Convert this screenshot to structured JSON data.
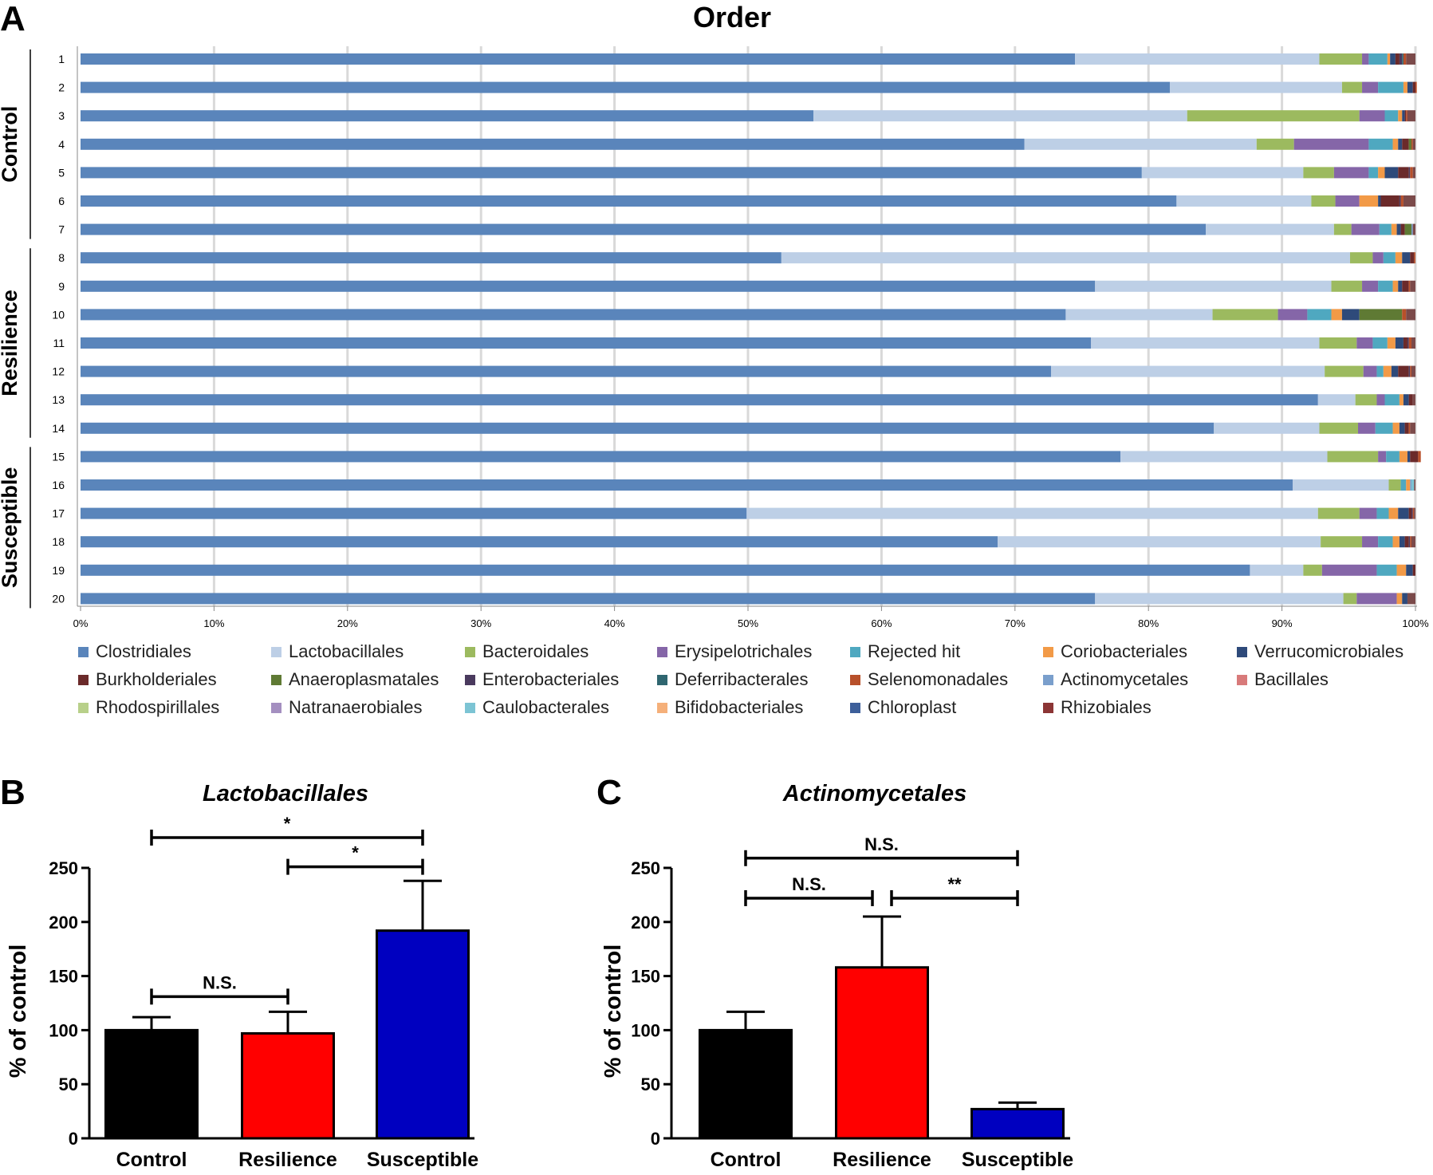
{
  "chart_data": [
    {
      "panel": "A",
      "type": "bar",
      "orientation": "horizontal",
      "stacked": true,
      "title": "Order",
      "rows": [
        "1",
        "2",
        "3",
        "4",
        "5",
        "6",
        "7",
        "8",
        "9",
        "10",
        "11",
        "12",
        "13",
        "14",
        "15",
        "16",
        "17",
        "18",
        "19",
        "20"
      ],
      "groups": [
        {
          "label": "Control",
          "rows": [
            "1",
            "2",
            "3",
            "4",
            "5",
            "6",
            "7"
          ]
        },
        {
          "label": "Resilience",
          "rows": [
            "8",
            "9",
            "10",
            "11",
            "12",
            "13",
            "14"
          ]
        },
        {
          "label": "Susceptible",
          "rows": [
            "15",
            "16",
            "17",
            "18",
            "19",
            "20"
          ]
        }
      ],
      "x_ticks": [
        "0%",
        "10%",
        "20%",
        "30%",
        "40%",
        "50%",
        "60%",
        "70%",
        "80%",
        "90%",
        "100%"
      ],
      "xlim": [
        0,
        100
      ],
      "grid": "vertical",
      "legend_position": "bottom",
      "series": [
        {
          "name": "Clostridiales",
          "color": "#5a85bb",
          "values": [
            74.5,
            81.6,
            54.9,
            70.7,
            79.5,
            82.1,
            84.3,
            52.5,
            76.0,
            73.8,
            75.7,
            72.7,
            92.7,
            84.9,
            77.9,
            90.8,
            49.9,
            68.7,
            87.6,
            76.0
          ]
        },
        {
          "name": "Lactobacillales",
          "color": "#bdcfe6",
          "values": [
            18.3,
            12.9,
            28.0,
            17.4,
            12.1,
            10.1,
            9.6,
            42.6,
            17.7,
            11.0,
            17.1,
            20.5,
            2.8,
            7.9,
            15.5,
            7.2,
            42.8,
            24.2,
            4.0,
            18.6
          ]
        },
        {
          "name": "Bacteroidales",
          "color": "#9cba5f",
          "values": [
            3.2,
            1.5,
            12.9,
            2.8,
            2.3,
            1.8,
            1.3,
            1.7,
            2.3,
            4.9,
            2.8,
            2.9,
            1.6,
            2.9,
            3.8,
            0.9,
            3.1,
            3.1,
            1.4,
            1.0
          ]
        },
        {
          "name": "Erysipelotrichales",
          "color": "#8566a8",
          "values": [
            0.5,
            1.2,
            1.9,
            5.6,
            2.6,
            1.8,
            2.1,
            0.8,
            1.2,
            2.2,
            1.2,
            1.0,
            0.6,
            1.3,
            0.6,
            0,
            1.3,
            1.2,
            4.1,
            3.0
          ]
        },
        {
          "name": "Rejected hit",
          "color": "#4fa8c0",
          "values": [
            1.4,
            1.9,
            1.0,
            1.8,
            0.7,
            0,
            0.9,
            0.9,
            1.1,
            1.8,
            1.1,
            0.5,
            1.1,
            1.3,
            1.0,
            0.4,
            0.9,
            1.1,
            1.5,
            0
          ]
        },
        {
          "name": "Coriobacteriales",
          "color": "#f29a47",
          "values": [
            0.2,
            0.3,
            0.3,
            0.4,
            0.5,
            1.4,
            0.4,
            0.5,
            0.4,
            0.8,
            0.6,
            0.6,
            0.3,
            0.5,
            0.6,
            0.3,
            0.7,
            0.5,
            0.7,
            0.4
          ]
        },
        {
          "name": "Verrucomicrobiales",
          "color": "#2e4a7a",
          "values": [
            0.4,
            0.4,
            0.2,
            0.3,
            1.0,
            0.2,
            0.3,
            0.6,
            0.3,
            1.3,
            0.6,
            0.5,
            0.4,
            0.4,
            0.2,
            0,
            0.8,
            0.4,
            0.5,
            0.4
          ]
        },
        {
          "name": "Burkholderiales",
          "color": "#6b2a2a",
          "values": [
            0.3,
            0.2,
            0.1,
            0.5,
            0.8,
            1.4,
            0.3,
            0.3,
            0.5,
            0,
            0.3,
            0.8,
            0.3,
            0.3,
            0.6,
            0,
            0.2,
            0.3,
            0.2,
            0
          ]
        },
        {
          "name": "Anaeroplasmatales",
          "color": "#5f7a34",
          "values": [
            0,
            0,
            0,
            0.2,
            0,
            0,
            0.5,
            0,
            0,
            3.2,
            0,
            0,
            0,
            0,
            0,
            0,
            0,
            0,
            0,
            0
          ]
        },
        {
          "name": "Enterobacteriales",
          "color": "#4a3a5e",
          "values": [
            0.2,
            0,
            0,
            0,
            0.1,
            0.1,
            0,
            0,
            0,
            0,
            0.1,
            0.1,
            0,
            0,
            0,
            0,
            0.1,
            0.1,
            0,
            0
          ]
        },
        {
          "name": "Deferribacterales",
          "color": "#2f6670",
          "values": [
            0.1,
            0,
            0,
            0,
            0,
            0,
            0,
            0,
            0,
            0,
            0,
            0,
            0,
            0,
            0,
            0,
            0,
            0,
            0,
            0
          ]
        },
        {
          "name": "Selenomonadales",
          "color": "#b8502a",
          "values": [
            0.2,
            0.1,
            0.1,
            0.1,
            0.2,
            0.2,
            0,
            0.1,
            0.1,
            0.3,
            0.2,
            0.1,
            0,
            0.1,
            0.2,
            0,
            0.1,
            0.1,
            0,
            0
          ]
        },
        {
          "name": "Actinomycetales",
          "color": "#7a9fcc",
          "values": [
            0,
            0,
            0,
            0,
            0,
            0,
            0.1,
            0,
            0,
            0,
            0,
            0,
            0,
            0,
            0,
            0.1,
            0,
            0,
            0,
            0
          ]
        },
        {
          "name": "Bacillales",
          "color": "#d87a7a",
          "values": [
            0,
            0,
            0,
            0,
            0,
            0,
            0,
            0,
            0,
            0,
            0,
            0,
            0,
            0,
            0,
            0,
            0,
            0,
            0,
            0
          ]
        },
        {
          "name": "Rhodospirillales",
          "color": "#b8d08a",
          "values": [
            0,
            0,
            0,
            0,
            0,
            0,
            0,
            0,
            0,
            0,
            0,
            0,
            0,
            0,
            0,
            0,
            0,
            0,
            0,
            0
          ]
        },
        {
          "name": "Natranaerobiales",
          "color": "#a48fc0",
          "values": [
            0,
            0,
            0,
            0,
            0,
            0,
            0,
            0,
            0,
            0,
            0,
            0,
            0,
            0,
            0,
            0,
            0,
            0,
            0,
            0
          ]
        },
        {
          "name": "Caulobacterales",
          "color": "#7cc4d4",
          "values": [
            0,
            0,
            0,
            0,
            0,
            0,
            0,
            0,
            0,
            0,
            0,
            0,
            0,
            0,
            0,
            0.2,
            0,
            0,
            0,
            0
          ]
        },
        {
          "name": "Bifidobacteriales",
          "color": "#f5b07a",
          "values": [
            0,
            0,
            0,
            0,
            0,
            0,
            0,
            0,
            0,
            0,
            0,
            0,
            0,
            0,
            0,
            0,
            0,
            0,
            0,
            0
          ]
        },
        {
          "name": "Chloroplast",
          "color": "#3d5f9a",
          "values": [
            0,
            0,
            0,
            0,
            0,
            0,
            0,
            0,
            0,
            0,
            0,
            0,
            0,
            0,
            0,
            0,
            0,
            0,
            0,
            0
          ]
        },
        {
          "name": "Rhizobiales",
          "color": "#8c3535",
          "values": [
            0,
            0,
            0,
            0,
            0,
            0,
            0,
            0,
            0,
            0,
            0,
            0,
            0,
            0,
            0,
            0,
            0,
            0,
            0,
            0
          ]
        }
      ]
    },
    {
      "panel": "B",
      "type": "bar",
      "title": "Lactobacillales",
      "ylabel": "% of control",
      "ylim": [
        0,
        250
      ],
      "y_ticks": [
        "0",
        "50",
        "100",
        "150",
        "200",
        "250"
      ],
      "categories": [
        "Control",
        "Resilience",
        "Susceptible"
      ],
      "values": [
        100,
        97,
        192
      ],
      "errors": [
        12,
        20,
        46
      ],
      "colors": [
        "#000000",
        "#ff0000",
        "#0000c0"
      ],
      "comparisons": [
        {
          "from": "Control",
          "to": "Susceptible",
          "label": "*",
          "y": 278
        },
        {
          "from": "Resilience",
          "to": "Susceptible",
          "label": "*",
          "y": 251
        },
        {
          "from": "Control",
          "to": "Resilience",
          "label": "N.S.",
          "y": 131
        }
      ]
    },
    {
      "panel": "C",
      "type": "bar",
      "title": "Actinomycetales",
      "ylabel": "% of control",
      "ylim": [
        0,
        250
      ],
      "y_ticks": [
        "0",
        "50",
        "100",
        "150",
        "200",
        "250"
      ],
      "categories": [
        "Control",
        "Resilience",
        "Susceptible"
      ],
      "values": [
        100,
        158,
        27
      ],
      "errors": [
        17,
        47,
        6
      ],
      "colors": [
        "#000000",
        "#ff0000",
        "#0000c0"
      ],
      "comparisons": [
        {
          "from": "Control",
          "to": "Susceptible",
          "label": "N.S.",
          "y": 259
        },
        {
          "from": "Control",
          "to": "Resilience",
          "label": "N.S.",
          "y": 222
        },
        {
          "from": "Resilience",
          "to": "Susceptible",
          "label": "**",
          "y": 222
        }
      ]
    }
  ]
}
